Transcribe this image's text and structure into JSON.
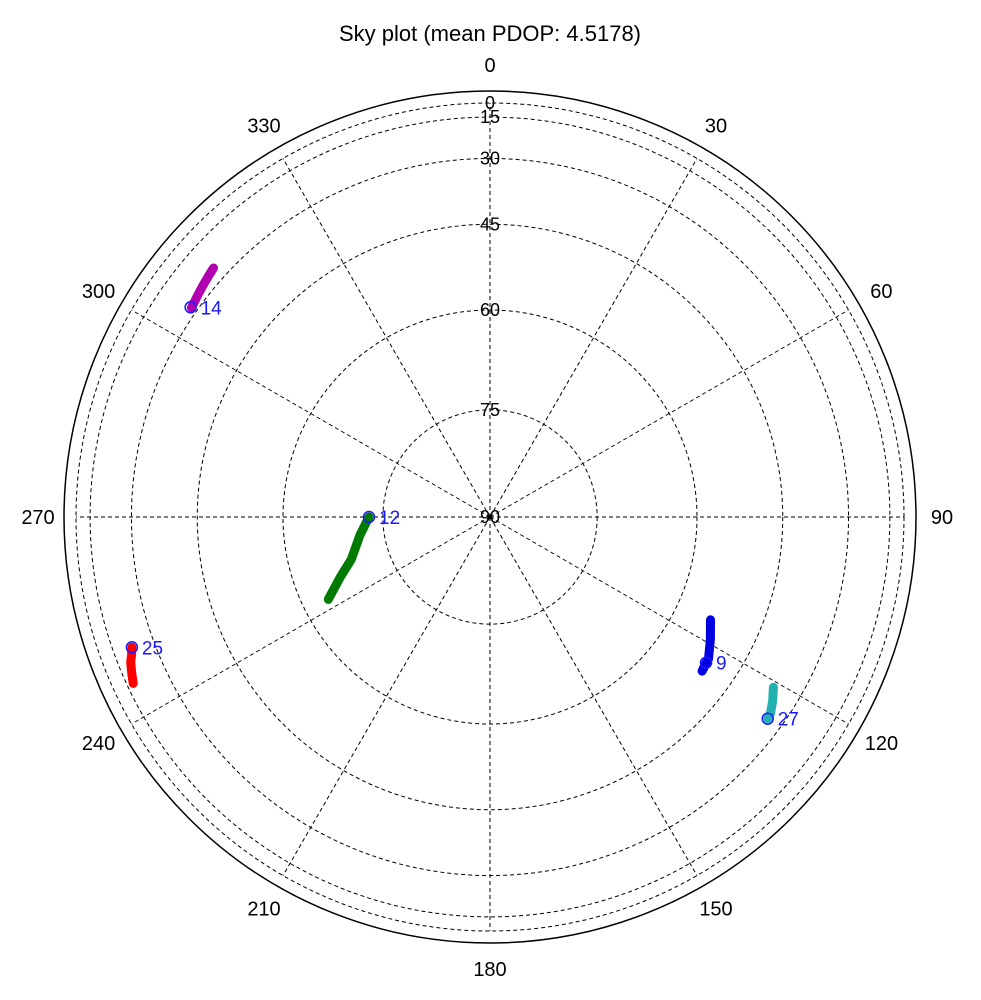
{
  "chart_data": {
    "type": "scatter",
    "projection": "polar-sky",
    "title": "Sky plot (mean PDOP: 4.5178)",
    "azimuth_labels": [
      "0",
      "30",
      "60",
      "90",
      "120",
      "150",
      "180",
      "210",
      "240",
      "270",
      "300",
      "330"
    ],
    "elevation_labels": [
      "0",
      "15",
      "30",
      "45",
      "60",
      "75",
      "90"
    ],
    "elevation_range": [
      0,
      90
    ],
    "grid": true,
    "label_color": "#1a1aff",
    "marker_color": "#1a1aff",
    "series": [
      {
        "prn": "14",
        "color": "#b000b0",
        "current": {
          "az": 305,
          "el": 28
        },
        "track": [
          {
            "az": 312,
            "el": 26.0
          },
          {
            "az": 310.5,
            "el": 26.5
          },
          {
            "az": 309,
            "el": 27.0
          },
          {
            "az": 307.5,
            "el": 27.5
          },
          {
            "az": 306,
            "el": 28.0
          },
          {
            "az": 305,
            "el": 28.3
          }
        ]
      },
      {
        "prn": "25",
        "color": "#ff0000",
        "current": {
          "az": 250,
          "el": 23
        },
        "track": [
          {
            "az": 245,
            "el": 18.0
          },
          {
            "az": 246.5,
            "el": 19.3
          },
          {
            "az": 248,
            "el": 20.6
          },
          {
            "az": 249,
            "el": 22.0
          },
          {
            "az": 250,
            "el": 23.0
          }
        ]
      },
      {
        "prn": "12",
        "color": "#007a00",
        "current": {
          "az": 270,
          "el": 73
        },
        "track": [
          {
            "az": 243,
            "el": 64.0
          },
          {
            "az": 248,
            "el": 67.0
          },
          {
            "az": 253,
            "el": 69.5
          },
          {
            "az": 262,
            "el": 71.5
          },
          {
            "az": 270,
            "el": 73.0
          }
        ]
      },
      {
        "prn": "9",
        "color": "#0000e0",
        "current": {
          "az": 124,
          "el": 51
        },
        "track": [
          {
            "az": 115,
            "el": 54.0
          },
          {
            "az": 119,
            "el": 52.5
          },
          {
            "az": 123,
            "el": 51.0
          },
          {
            "az": 126,
            "el": 50.7
          },
          {
            "az": 124,
            "el": 51.0
          }
        ]
      },
      {
        "prn": "27",
        "color": "#22b0b0",
        "current": {
          "az": 126,
          "el": 34
        },
        "track": [
          {
            "az": 121,
            "el": 37.0
          },
          {
            "az": 123,
            "el": 35.5
          },
          {
            "az": 125,
            "el": 34.2
          },
          {
            "az": 126,
            "el": 34.0
          }
        ]
      }
    ]
  }
}
